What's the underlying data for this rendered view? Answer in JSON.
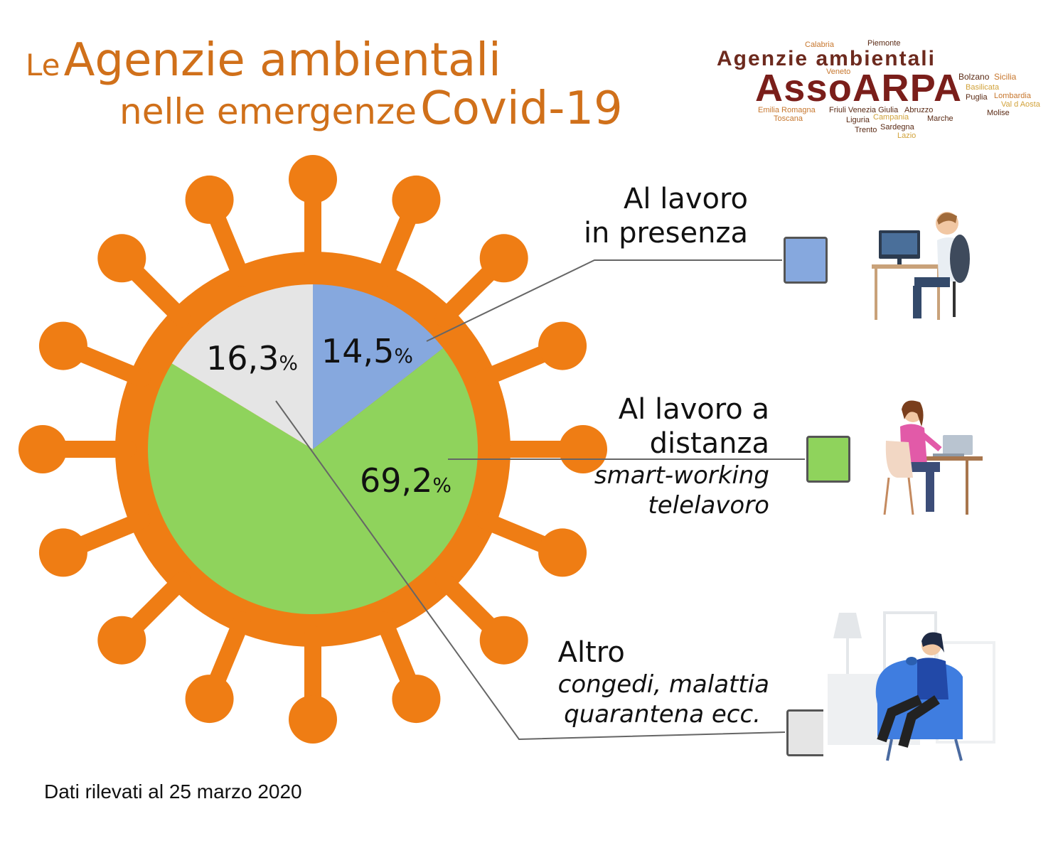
{
  "title": {
    "line1_prefix": "Le",
    "line1_main": "Agenzie ambientali",
    "line2_main": "nelle emergenze",
    "line2_suffix": "Covid-19"
  },
  "logo": {
    "heading": "Agenzie ambientali",
    "brand": "AssoARPA",
    "regions": [
      "Calabria",
      "Piemonte",
      "Veneto",
      "Bolzano",
      "Sicilia",
      "Basilicata",
      "Puglia",
      "Lombardia",
      "Val d Aosta",
      "Emilia Romagna",
      "Friuli Venezia Giulia",
      "Abruzzo",
      "Toscana",
      "Campania",
      "Marche",
      "Molise",
      "Liguria",
      "Trento",
      "Sardegna",
      "Lazio"
    ]
  },
  "chart_data": {
    "type": "pie",
    "slices": [
      {
        "label_main": "Al lavoro",
        "label_main2": "in presenza",
        "label_sub": "",
        "label_sub2": "",
        "value": 14.5,
        "value_text": "14,5",
        "color": "#86a8de"
      },
      {
        "label_main": "Al lavoro a",
        "label_main2": "distanza",
        "label_sub": "smart-working",
        "label_sub2": "telelavoro",
        "value": 69.2,
        "value_text": "69,2",
        "color": "#8fd35c"
      },
      {
        "label_main": "Altro",
        "label_main2": "",
        "label_sub": "congedi, malattia",
        "label_sub2": "quarantena ecc.",
        "value": 16.3,
        "value_text": "16,3",
        "color": "#e5e5e5"
      }
    ],
    "unit": "%"
  },
  "footer": "Dati rilevati al 25 marzo 2020",
  "colors": {
    "title": "#d0701a",
    "virus": "#ef7d14",
    "leader_line": "#666666"
  },
  "icons": {
    "presence": "person-at-desk-icon",
    "remote": "woman-with-laptop-icon",
    "other": "woman-in-armchair-icon"
  }
}
